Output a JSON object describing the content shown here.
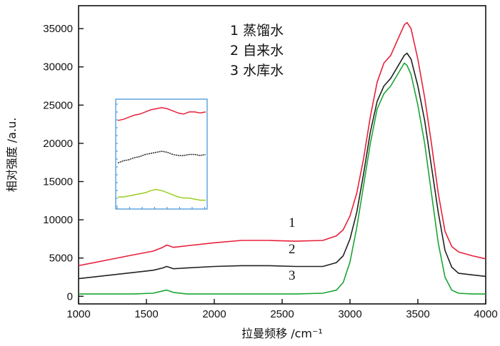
{
  "chart_data": {
    "type": "line",
    "xlabel": "拉曼频移 /cm⁻¹",
    "ylabel": "相对强度 /a.u.",
    "xlim": [
      1000,
      4000
    ],
    "ylim": [
      -1000,
      38000
    ],
    "xticks": [
      "1000",
      "1500",
      "2000",
      "2500",
      "3000",
      "3500",
      "4000"
    ],
    "yticks": [
      "0",
      "5000",
      "10000",
      "15000",
      "20000",
      "25000",
      "30000",
      "35000"
    ],
    "legend": [
      "1 蒸馏水",
      "2 自来水",
      "3 水库水"
    ],
    "legend_position": "top-center",
    "series": [
      {
        "name": "1 蒸馏水",
        "label": "1",
        "color": "#e8203a",
        "x": [
          1000,
          1200,
          1400,
          1550,
          1620,
          1650,
          1700,
          1800,
          2000,
          2200,
          2400,
          2600,
          2800,
          2900,
          2950,
          3000,
          3050,
          3100,
          3150,
          3200,
          3250,
          3300,
          3350,
          3400,
          3420,
          3450,
          3500,
          3550,
          3600,
          3650,
          3700,
          3750,
          3800,
          3900,
          4000
        ],
        "y": [
          4000,
          4700,
          5400,
          5900,
          6400,
          6700,
          6400,
          6600,
          7000,
          7300,
          7300,
          7200,
          7300,
          7900,
          8700,
          10500,
          13500,
          18000,
          23500,
          28000,
          30500,
          31500,
          33500,
          35500,
          35800,
          35000,
          31000,
          26000,
          20000,
          13500,
          8500,
          6500,
          5800,
          5300,
          4900
        ]
      },
      {
        "name": "2 自来水",
        "label": "2",
        "color": "#222222",
        "x": [
          1000,
          1200,
          1400,
          1550,
          1620,
          1650,
          1700,
          1800,
          2000,
          2200,
          2400,
          2600,
          2800,
          2900,
          2950,
          3000,
          3050,
          3100,
          3150,
          3200,
          3250,
          3300,
          3350,
          3400,
          3420,
          3450,
          3500,
          3550,
          3600,
          3650,
          3700,
          3750,
          3800,
          3900,
          4000
        ],
        "y": [
          2300,
          2700,
          3100,
          3400,
          3700,
          3900,
          3600,
          3700,
          3900,
          4000,
          4000,
          3900,
          3900,
          4400,
          5300,
          7500,
          11000,
          16000,
          21500,
          25500,
          27500,
          28500,
          30000,
          31500,
          31800,
          31000,
          27500,
          23000,
          17000,
          11000,
          6000,
          3800,
          3000,
          2800,
          2600
        ]
      },
      {
        "name": "3 水库水",
        "label": "3",
        "color": "#1aa534",
        "x": [
          1000,
          1200,
          1400,
          1550,
          1620,
          1650,
          1700,
          1800,
          2000,
          2200,
          2400,
          2600,
          2800,
          2900,
          2950,
          3000,
          3050,
          3100,
          3150,
          3200,
          3250,
          3300,
          3350,
          3400,
          3420,
          3450,
          3500,
          3550,
          3600,
          3650,
          3700,
          3750,
          3800,
          3900,
          4000
        ],
        "y": [
          300,
          300,
          300,
          400,
          700,
          800,
          500,
          300,
          300,
          300,
          300,
          300,
          400,
          800,
          1800,
          4500,
          9000,
          14500,
          20000,
          24500,
          26500,
          27500,
          29000,
          30500,
          30200,
          29000,
          25000,
          20000,
          13500,
          7000,
          2500,
          800,
          400,
          300,
          300
        ]
      }
    ],
    "inset": {
      "series": [
        {
          "color": "#e8203a",
          "values": [
            0.18,
            0.17,
            0.15,
            0.13,
            0.12,
            0.1,
            0.08,
            0.07,
            0.06,
            0.07,
            0.09,
            0.11,
            0.12,
            0.1,
            0.1,
            0.11,
            0.1
          ]
        },
        {
          "color": "#222222",
          "values": [
            0.58,
            0.56,
            0.55,
            0.53,
            0.52,
            0.5,
            0.49,
            0.48,
            0.47,
            0.48,
            0.5,
            0.51,
            0.51,
            0.5,
            0.5,
            0.51,
            0.5
          ]
        },
        {
          "color": "#9acd20",
          "values": [
            0.9,
            0.9,
            0.89,
            0.88,
            0.87,
            0.86,
            0.84,
            0.83,
            0.84,
            0.86,
            0.88,
            0.9,
            0.91,
            0.91,
            0.92,
            0.93,
            0.93
          ]
        }
      ]
    }
  }
}
